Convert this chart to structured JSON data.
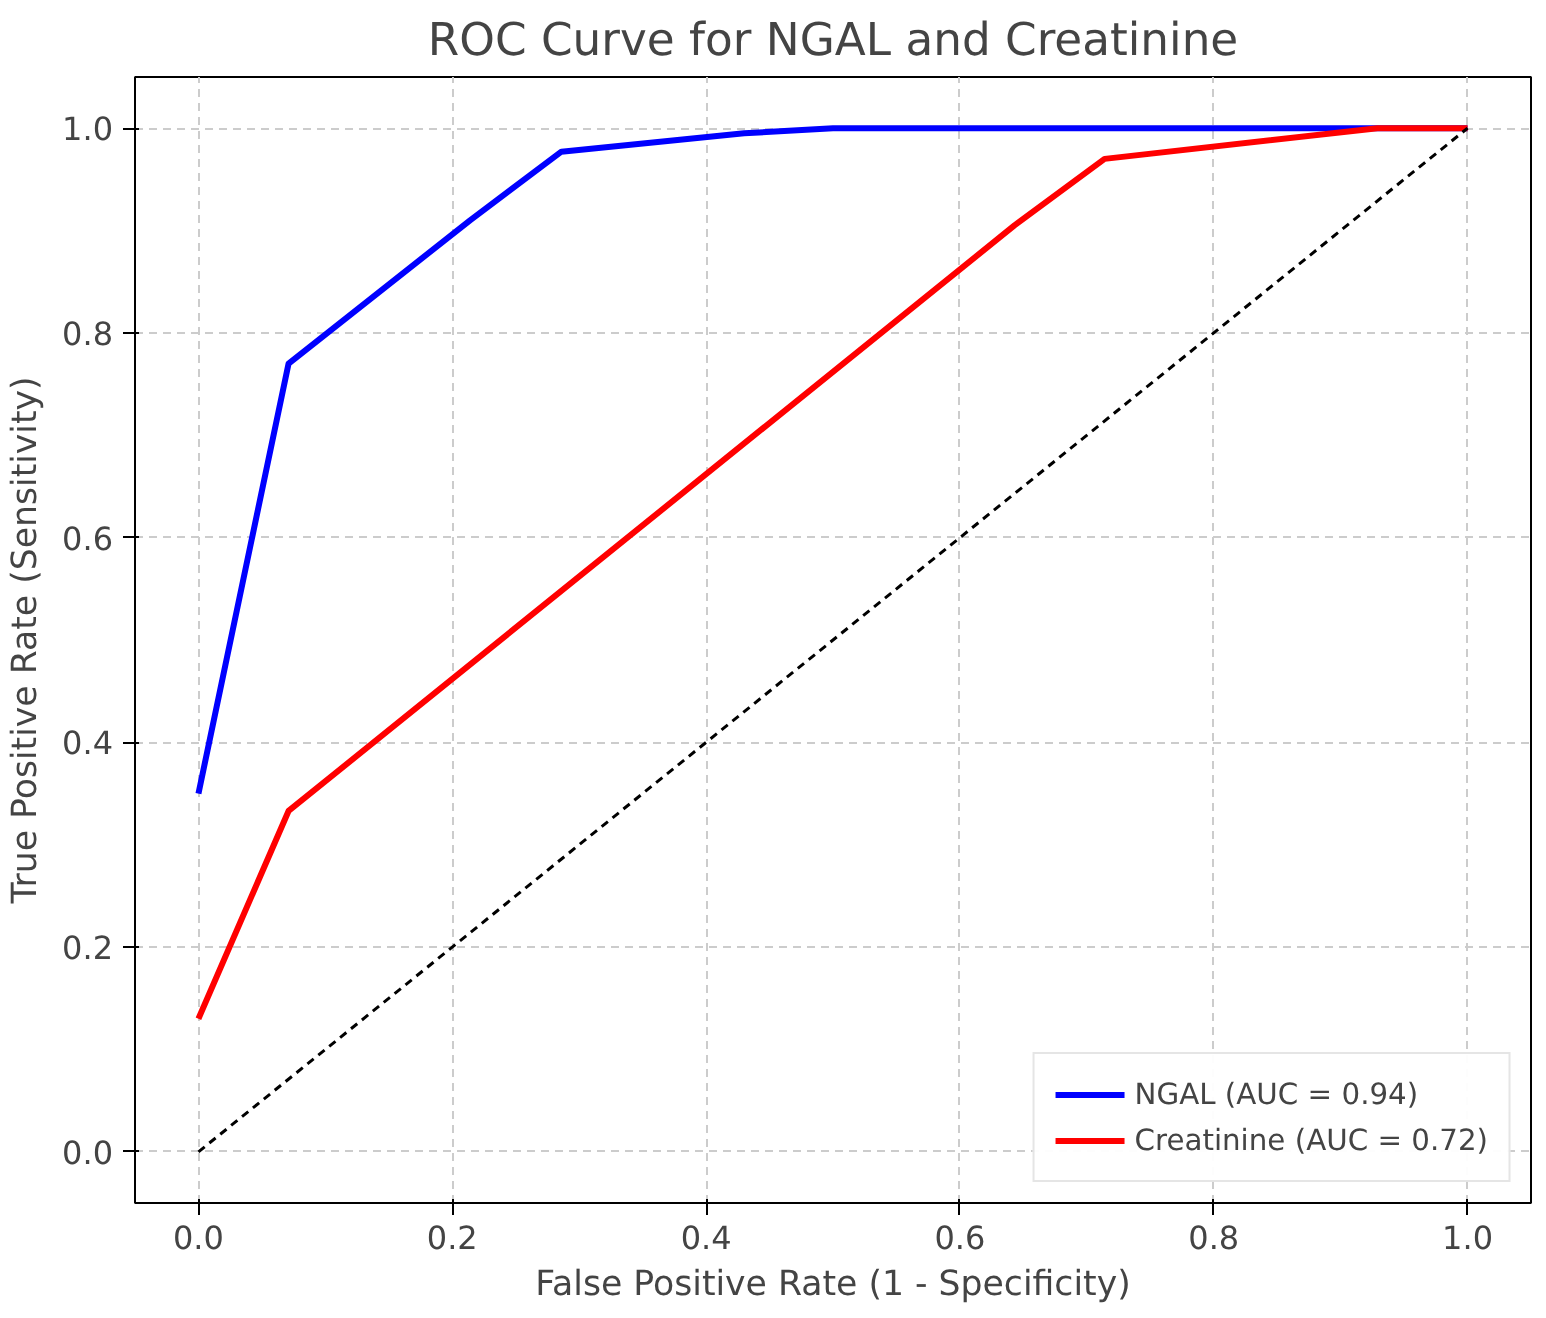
{
  "chart_data": {
    "type": "line",
    "title": "ROC Curve for NGAL and Creatinine",
    "xlabel": "False Positive Rate (1 - Specificity)",
    "ylabel": "True Positive Rate (Sensitivity)",
    "series": [
      {
        "name": "NGAL (AUC = 0.94)",
        "color": "#0000ff",
        "x": [
          0,
          0.071,
          0.214,
          0.286,
          0.43,
          0.5,
          1.0
        ],
        "values": [
          0.35,
          0.77,
          0.91,
          0.977,
          0.995,
          1.0,
          1.0
        ]
      },
      {
        "name": "Creatinine (AUC = 0.72)",
        "color": "#ff0000",
        "x": [
          0,
          0.071,
          0.643,
          0.714,
          0.929,
          1.0
        ],
        "values": [
          0.13,
          0.333,
          0.905,
          0.97,
          1.0,
          1.0
        ]
      },
      {
        "color": "#000000",
        "line_style": "dashed",
        "x": [
          0,
          1
        ],
        "values": [
          0,
          1
        ]
      }
    ],
    "xlim": [
      -0.05,
      1.05
    ],
    "ylim": [
      -0.05,
      1.05
    ],
    "xticks": [
      {
        "value": 0,
        "label": "0.0"
      },
      {
        "value": 0.2,
        "label": "0.2"
      },
      {
        "value": 0.4,
        "label": "0.4"
      },
      {
        "value": 0.6,
        "label": "0.6"
      },
      {
        "value": 0.8,
        "label": "0.8"
      },
      {
        "value": 1,
        "label": "1.0"
      }
    ],
    "yticks": [
      {
        "value": 0,
        "label": "0.0"
      },
      {
        "value": 0.2,
        "label": "0.2"
      },
      {
        "value": 0.4,
        "label": "0.4"
      },
      {
        "value": 0.6,
        "label": "0.6"
      },
      {
        "value": 0.8,
        "label": "0.8"
      },
      {
        "value": 1,
        "label": "1.0"
      }
    ],
    "grid": true,
    "legend": "bottom right",
    "line_style": "solid",
    "marker": "none"
  }
}
